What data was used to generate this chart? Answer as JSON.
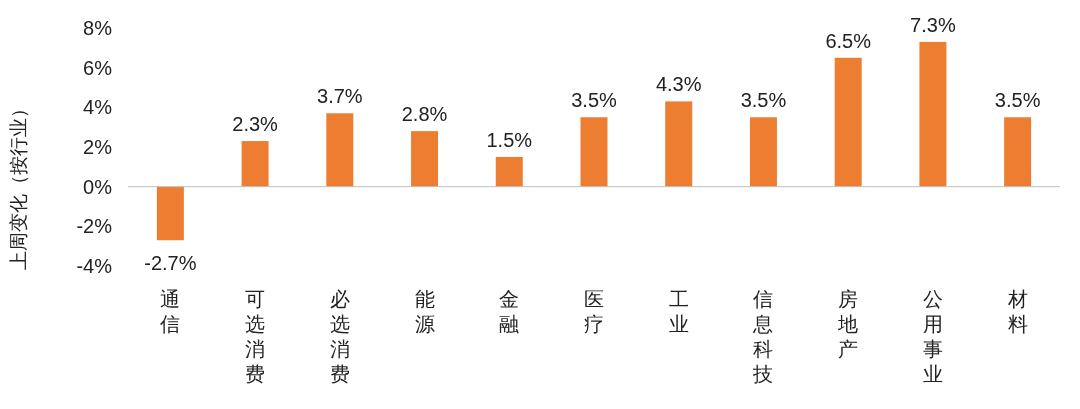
{
  "chart_data": {
    "type": "bar",
    "ylabel": "上周变化（按行业）",
    "categories": [
      "通信",
      "可选消费",
      "必选消费",
      "能源",
      "金融",
      "医疗",
      "工业",
      "信息科技",
      "房地产",
      "公用事业",
      "材料"
    ],
    "values": [
      -2.7,
      2.3,
      3.7,
      2.8,
      1.5,
      3.5,
      4.3,
      3.5,
      6.5,
      7.3,
      3.5
    ],
    "value_labels": [
      "-2.7%",
      "2.3%",
      "3.7%",
      "2.8%",
      "1.5%",
      "3.5%",
      "4.3%",
      "3.5%",
      "6.5%",
      "7.3%",
      "3.5%"
    ],
    "color": "#ed7d31",
    "ylim": [
      -4,
      8
    ],
    "yticks": [
      {
        "value": -4,
        "label": "-4%"
      },
      {
        "value": -2,
        "label": "-2%"
      },
      {
        "value": 0,
        "label": "0%"
      },
      {
        "value": 2,
        "label": "2%"
      },
      {
        "value": 4,
        "label": "4%"
      },
      {
        "value": 6,
        "label": "6%"
      },
      {
        "value": 8,
        "label": "8%"
      }
    ]
  }
}
